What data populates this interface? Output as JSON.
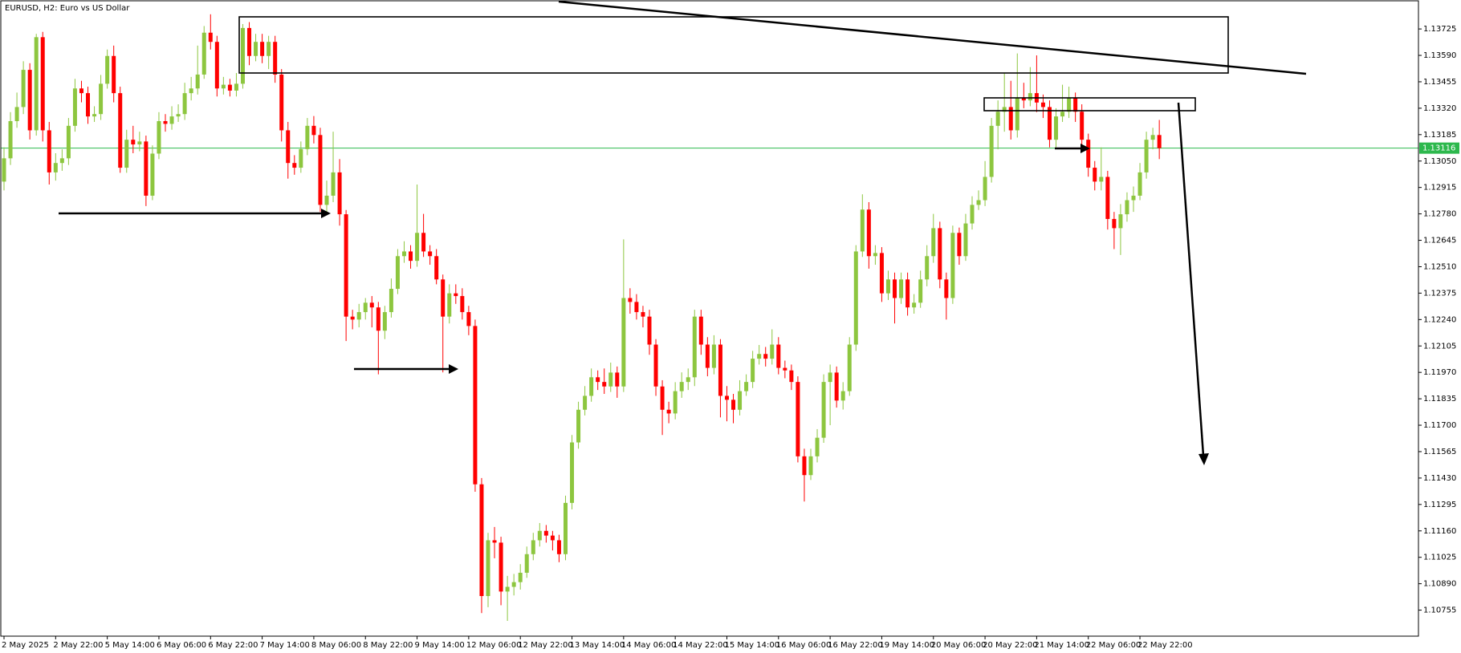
{
  "chart_data": {
    "type": "candlestick",
    "title": "EURUSD, H2:  Euro vs US Dollar",
    "categories": [
      "2 May 2025",
      null,
      null,
      null,
      null,
      null,
      null,
      null,
      "2 May 22:00",
      null,
      null,
      null,
      null,
      null,
      null,
      null,
      "5 May 14:00",
      null,
      null,
      null,
      null,
      null,
      null,
      null,
      "6 May 06:00",
      null,
      null,
      null,
      null,
      null,
      null,
      null,
      "6 May 22:00",
      null,
      null,
      null,
      null,
      null,
      null,
      null,
      "7 May 14:00",
      null,
      null,
      null,
      null,
      null,
      null,
      null,
      "8 May 06:00",
      null,
      null,
      null,
      null,
      null,
      null,
      null,
      "8 May 22:00",
      null,
      null,
      null,
      null,
      null,
      null,
      null,
      "9 May 14:00",
      null,
      null,
      null,
      null,
      null,
      null,
      null,
      "12 May 06:00",
      null,
      null,
      null,
      null,
      null,
      null,
      null,
      "12 May 22:00",
      null,
      null,
      null,
      null,
      null,
      null,
      null,
      "13 May 14:00",
      null,
      null,
      null,
      null,
      null,
      null,
      null,
      "14 May 06:00",
      null,
      null,
      null,
      null,
      null,
      null,
      null,
      "14 May 22:00",
      null,
      null,
      null,
      null,
      null,
      null,
      null,
      "15 May 14:00",
      null,
      null,
      null,
      null,
      null,
      null,
      null,
      "16 May 06:00",
      null,
      null,
      null,
      null,
      null,
      null,
      null,
      "16 May 22:00",
      null,
      null,
      null,
      null,
      null,
      null,
      null,
      "19 May 14:00",
      null,
      null,
      null,
      null,
      null,
      null,
      null,
      "20 May 06:00",
      null,
      null,
      null,
      null,
      null,
      null,
      null,
      "20 May 22:00",
      null,
      null,
      null,
      null,
      null,
      null,
      null,
      "21 May 14:00",
      null,
      null,
      null,
      null,
      null,
      null,
      null,
      "22 May 06:00",
      null,
      null,
      null,
      null,
      null,
      null,
      null,
      "22 May 22:00",
      null,
      null,
      null
    ],
    "open": [
      1.12945,
      1.13064,
      1.13254,
      1.13326,
      1.13516,
      1.13207,
      1.13683,
      1.13207,
      1.12992,
      1.1304,
      1.13064,
      1.1323,
      1.13421,
      1.13397,
      1.13278,
      1.1329,
      1.13445,
      1.13587,
      1.13397,
      1.13016,
      1.13159,
      1.13135,
      1.1315,
      1.12873,
      1.13088,
      1.13254,
      1.1324,
      1.13278,
      1.1329,
      1.13397,
      1.13421,
      1.13492,
      1.13706,
      1.13659,
      1.13421,
      1.1344,
      1.1341,
      1.13445,
      1.1373,
      1.13587,
      1.13659,
      1.13587,
      1.13659,
      1.13492,
      1.13207,
      1.1304,
      1.13016,
      1.13111,
      1.1323,
      1.13183,
      1.12826,
      1.12873,
      1.12992,
      1.12778,
      1.12255,
      1.1224,
      1.12278,
      1.12326,
      1.12302,
      1.12183,
      1.12278,
      1.12397,
      1.12564,
      1.12588,
      1.1254,
      1.12683,
      1.12588,
      1.12564,
      1.12445,
      1.12255,
      1.12374,
      1.1236,
      1.12278,
      1.12207,
      1.11398,
      1.10827,
      1.11112,
      1.111,
      1.1085,
      1.10874,
      1.10898,
      1.10946,
      1.11041,
      1.11112,
      1.1116,
      1.11136,
      1.11112,
      1.11041,
      1.11303,
      1.11612,
      1.11779,
      1.1185,
      1.11945,
      1.11921,
      1.11898,
      1.11969,
      1.11898,
      1.1235,
      1.1233,
      1.12278,
      1.12255,
      1.12112,
      1.11898,
      1.11779,
      1.1176,
      1.11874,
      1.11921,
      1.11945,
      1.12255,
      1.12112,
      1.11993,
      1.12112,
      1.1185,
      1.1183,
      1.11779,
      1.11874,
      1.11921,
      1.1204,
      1.12064,
      1.1204,
      1.12112,
      1.11993,
      1.1198,
      1.11921,
      1.11541,
      1.11445,
      1.11541,
      1.11636,
      1.11921,
      1.11969,
      1.11826,
      1.11874,
      1.12112,
      1.12588,
      1.12802,
      1.12564,
      1.1258,
      1.12374,
      1.12445,
      1.1235,
      1.12445,
      1.12302,
      1.12326,
      1.12445,
      1.12564,
      1.12707,
      1.12445,
      1.1235,
      1.12683,
      1.12564,
      1.12731,
      1.12826,
      1.1285,
      1.12969,
      1.1323,
      1.13302,
      1.13326,
      1.13207,
      1.13373,
      1.1336,
      1.13397,
      1.13349,
      1.13326,
      1.13159,
      1.13278,
      1.13302,
      1.13373,
      1.13302,
      1.13159,
      1.13016,
      1.12945,
      1.12969,
      1.12754,
      1.12707,
      1.12778,
      1.1285,
      1.12873,
      1.12992,
      1.13159,
      1.13183
    ],
    "high": [
      1.1312,
      1.133,
      1.134,
      1.1356,
      1.1355,
      1.137,
      1.1371,
      1.1325,
      1.1309,
      1.1311,
      1.1327,
      1.1347,
      1.1346,
      1.1343,
      1.1333,
      1.1349,
      1.1362,
      1.1364,
      1.1343,
      1.1321,
      1.1323,
      1.132,
      1.1318,
      1.1313,
      1.133,
      1.1329,
      1.1333,
      1.1334,
      1.1345,
      1.1348,
      1.1364,
      1.1374,
      1.138,
      1.1369,
      1.1348,
      1.1347,
      1.135,
      1.1375,
      1.1376,
      1.137,
      1.137,
      1.1369,
      1.1369,
      1.1352,
      1.1325,
      1.1308,
      1.1315,
      1.1327,
      1.1328,
      1.1322,
      1.1295,
      1.132,
      1.1306,
      1.128,
      1.1229,
      1.1232,
      1.1235,
      1.1236,
      1.1233,
      1.1231,
      1.1245,
      1.126,
      1.1264,
      1.1262,
      1.1293,
      1.1278,
      1.1262,
      1.126,
      1.1247,
      1.1242,
      1.1242,
      1.124,
      1.1231,
      1.1224,
      1.1143,
      1.1115,
      1.1118,
      1.1113,
      1.1093,
      1.1094,
      1.1099,
      1.1108,
      1.1115,
      1.112,
      1.1119,
      1.1116,
      1.1114,
      1.1134,
      1.1165,
      1.1182,
      1.119,
      1.1199,
      1.1198,
      1.1199,
      1.1202,
      1.12,
      1.1265,
      1.124,
      1.1237,
      1.1231,
      1.1229,
      1.1214,
      1.1193,
      1.1182,
      1.1192,
      1.1197,
      1.1199,
      1.1229,
      1.1229,
      1.1215,
      1.1216,
      1.1214,
      1.119,
      1.1186,
      1.1193,
      1.1196,
      1.1208,
      1.1211,
      1.121,
      1.1219,
      1.1215,
      1.1203,
      1.1201,
      1.1195,
      1.1158,
      1.1158,
      1.1168,
      1.1196,
      1.1201,
      1.12,
      1.1192,
      1.1215,
      1.1262,
      1.1288,
      1.1284,
      1.1262,
      1.1261,
      1.1249,
      1.1248,
      1.1248,
      1.1248,
      1.1237,
      1.1249,
      1.1262,
      1.1278,
      1.1274,
      1.1248,
      1.1272,
      1.1271,
      1.1278,
      1.1287,
      1.129,
      1.1305,
      1.1327,
      1.1336,
      1.135,
      1.1346,
      1.136,
      1.1345,
      1.1353,
      1.1359,
      1.1339,
      1.1336,
      1.1332,
      1.1344,
      1.1343,
      1.134,
      1.1334,
      1.1319,
      1.1305,
      1.1312,
      1.13,
      1.1279,
      1.1283,
      1.1289,
      1.1292,
      1.1304,
      1.132,
      1.1322,
      1.1326
    ],
    "low": [
      1.129,
      1.1303,
      1.1322,
      1.1329,
      1.1316,
      1.1318,
      1.1315,
      1.1293,
      1.1295,
      1.13,
      1.1303,
      1.132,
      1.1335,
      1.1324,
      1.1325,
      1.1326,
      1.1342,
      1.1335,
      1.1299,
      1.1299,
      1.1309,
      1.131,
      1.1282,
      1.1285,
      1.1306,
      1.132,
      1.1321,
      1.1325,
      1.1326,
      1.1336,
      1.1339,
      1.1347,
      1.1362,
      1.1338,
      1.1339,
      1.1338,
      1.1338,
      1.1342,
      1.1354,
      1.1356,
      1.1355,
      1.1352,
      1.1345,
      1.1315,
      1.1296,
      1.1298,
      1.1299,
      1.1308,
      1.1314,
      1.1279,
      1.1278,
      1.1284,
      1.1272,
      1.1213,
      1.1219,
      1.122,
      1.1224,
      1.122,
      1.1196,
      1.1214,
      1.1225,
      1.1237,
      1.1253,
      1.125,
      1.1251,
      1.1256,
      1.1252,
      1.1242,
      1.1197,
      1.1222,
      1.1232,
      1.1224,
      1.1216,
      1.1136,
      1.1074,
      1.1077,
      1.1102,
      1.1078,
      1.107,
      1.1083,
      1.1086,
      1.1092,
      1.1101,
      1.1108,
      1.111,
      1.1106,
      1.11,
      1.1101,
      1.1127,
      1.1158,
      1.1175,
      1.1182,
      1.1188,
      1.1186,
      1.1187,
      1.1184,
      1.1187,
      1.1227,
      1.1224,
      1.122,
      1.1206,
      1.1185,
      1.1165,
      1.1171,
      1.1173,
      1.1184,
      1.1188,
      1.119,
      1.1206,
      1.1195,
      1.1196,
      1.1174,
      1.1172,
      1.1171,
      1.1175,
      1.1185,
      1.1189,
      1.1201,
      1.12,
      1.1201,
      1.1196,
      1.1194,
      1.1188,
      1.1151,
      1.1131,
      1.1142,
      1.1151,
      1.1161,
      1.117,
      1.1179,
      1.1178,
      1.1185,
      1.1208,
      1.1256,
      1.125,
      1.1252,
      1.1233,
      1.1234,
      1.1222,
      1.1232,
      1.1226,
      1.1227,
      1.123,
      1.1241,
      1.1253,
      1.124,
      1.1224,
      1.1232,
      1.1252,
      1.1254,
      1.127,
      1.128,
      1.1282,
      1.1294,
      1.1311,
      1.132,
      1.1316,
      1.1317,
      1.1332,
      1.1333,
      1.133,
      1.1327,
      1.1312,
      1.1312,
      1.1325,
      1.1327,
      1.1325,
      1.131,
      1.1297,
      1.129,
      1.129,
      1.127,
      1.126,
      1.1257,
      1.1274,
      1.1279,
      1.1285,
      1.1296,
      1.1311,
      1.1306
    ],
    "close": [
      1.13064,
      1.13254,
      1.13326,
      1.13516,
      1.13207,
      1.13683,
      1.13207,
      1.12992,
      1.1304,
      1.13064,
      1.1323,
      1.13421,
      1.13397,
      1.13278,
      1.1329,
      1.13445,
      1.13587,
      1.13397,
      1.13016,
      1.13159,
      1.13135,
      1.1315,
      1.12873,
      1.13088,
      1.13254,
      1.1324,
      1.13278,
      1.1329,
      1.13397,
      1.13421,
      1.13492,
      1.13706,
      1.13659,
      1.13421,
      1.1344,
      1.1341,
      1.13445,
      1.1373,
      1.13587,
      1.13659,
      1.13587,
      1.13659,
      1.13492,
      1.13207,
      1.1304,
      1.13016,
      1.13111,
      1.1323,
      1.13183,
      1.12826,
      1.12873,
      1.12992,
      1.12778,
      1.12255,
      1.1224,
      1.12278,
      1.12326,
      1.12302,
      1.12183,
      1.12278,
      1.12397,
      1.12564,
      1.12588,
      1.1254,
      1.12683,
      1.12588,
      1.12564,
      1.12445,
      1.12255,
      1.12374,
      1.1236,
      1.12278,
      1.12207,
      1.11398,
      1.10827,
      1.11112,
      1.111,
      1.1085,
      1.10874,
      1.10898,
      1.10946,
      1.11041,
      1.11112,
      1.1116,
      1.11136,
      1.11112,
      1.11041,
      1.11303,
      1.11612,
      1.11779,
      1.1185,
      1.11945,
      1.11921,
      1.11898,
      1.11969,
      1.11898,
      1.1235,
      1.1233,
      1.12278,
      1.12255,
      1.12112,
      1.11898,
      1.11779,
      1.1176,
      1.11874,
      1.11921,
      1.11945,
      1.12255,
      1.12112,
      1.11993,
      1.12112,
      1.1185,
      1.1183,
      1.11779,
      1.11874,
      1.11921,
      1.1204,
      1.12064,
      1.1204,
      1.12112,
      1.11993,
      1.1198,
      1.11921,
      1.11541,
      1.11445,
      1.11541,
      1.11636,
      1.11921,
      1.11969,
      1.11826,
      1.11874,
      1.12112,
      1.12588,
      1.12802,
      1.12564,
      1.1258,
      1.12374,
      1.12445,
      1.1235,
      1.12445,
      1.12302,
      1.12326,
      1.12445,
      1.12564,
      1.12707,
      1.12445,
      1.1235,
      1.12683,
      1.12564,
      1.12731,
      1.12826,
      1.1285,
      1.12969,
      1.1323,
      1.13302,
      1.13326,
      1.13207,
      1.13373,
      1.1336,
      1.13397,
      1.13349,
      1.13326,
      1.13159,
      1.13278,
      1.13302,
      1.13373,
      1.13302,
      1.13159,
      1.13016,
      1.12945,
      1.12969,
      1.12754,
      1.12707,
      1.12778,
      1.1285,
      1.12873,
      1.12992,
      1.13159,
      1.13183,
      1.13116
    ],
    "up_color": "#8dc63f",
    "down_color": "#ff0000",
    "ylim": [
      1.10622,
      1.13873
    ],
    "yticks": [
      1.13725,
      {
        "value": 1.1359,
        "label": "1.13590"
      },
      1.13455,
      {
        "value": 1.1332,
        "label": "1.13320"
      },
      1.13185,
      {
        "value": 1.1305,
        "label": "1.13050"
      },
      1.12915,
      {
        "value": 1.1278,
        "label": "1.12780"
      },
      1.12645,
      {
        "value": 1.1251,
        "label": "1.12510"
      },
      1.12375,
      {
        "value": 1.1224,
        "label": "1.12240"
      },
      1.12105,
      {
        "value": 1.1197,
        "label": "1.11970"
      },
      1.11835,
      {
        "value": 1.117,
        "label": "1.11700"
      },
      1.11565,
      {
        "value": 1.1143,
        "label": "1.11430"
      },
      1.11295,
      {
        "value": 1.1116,
        "label": "1.11160"
      },
      1.11025,
      {
        "value": 1.1089,
        "label": "1.10890"
      },
      1.10755
    ],
    "current_price": 1.13116,
    "current_price_color": "#2db84d"
  }
}
